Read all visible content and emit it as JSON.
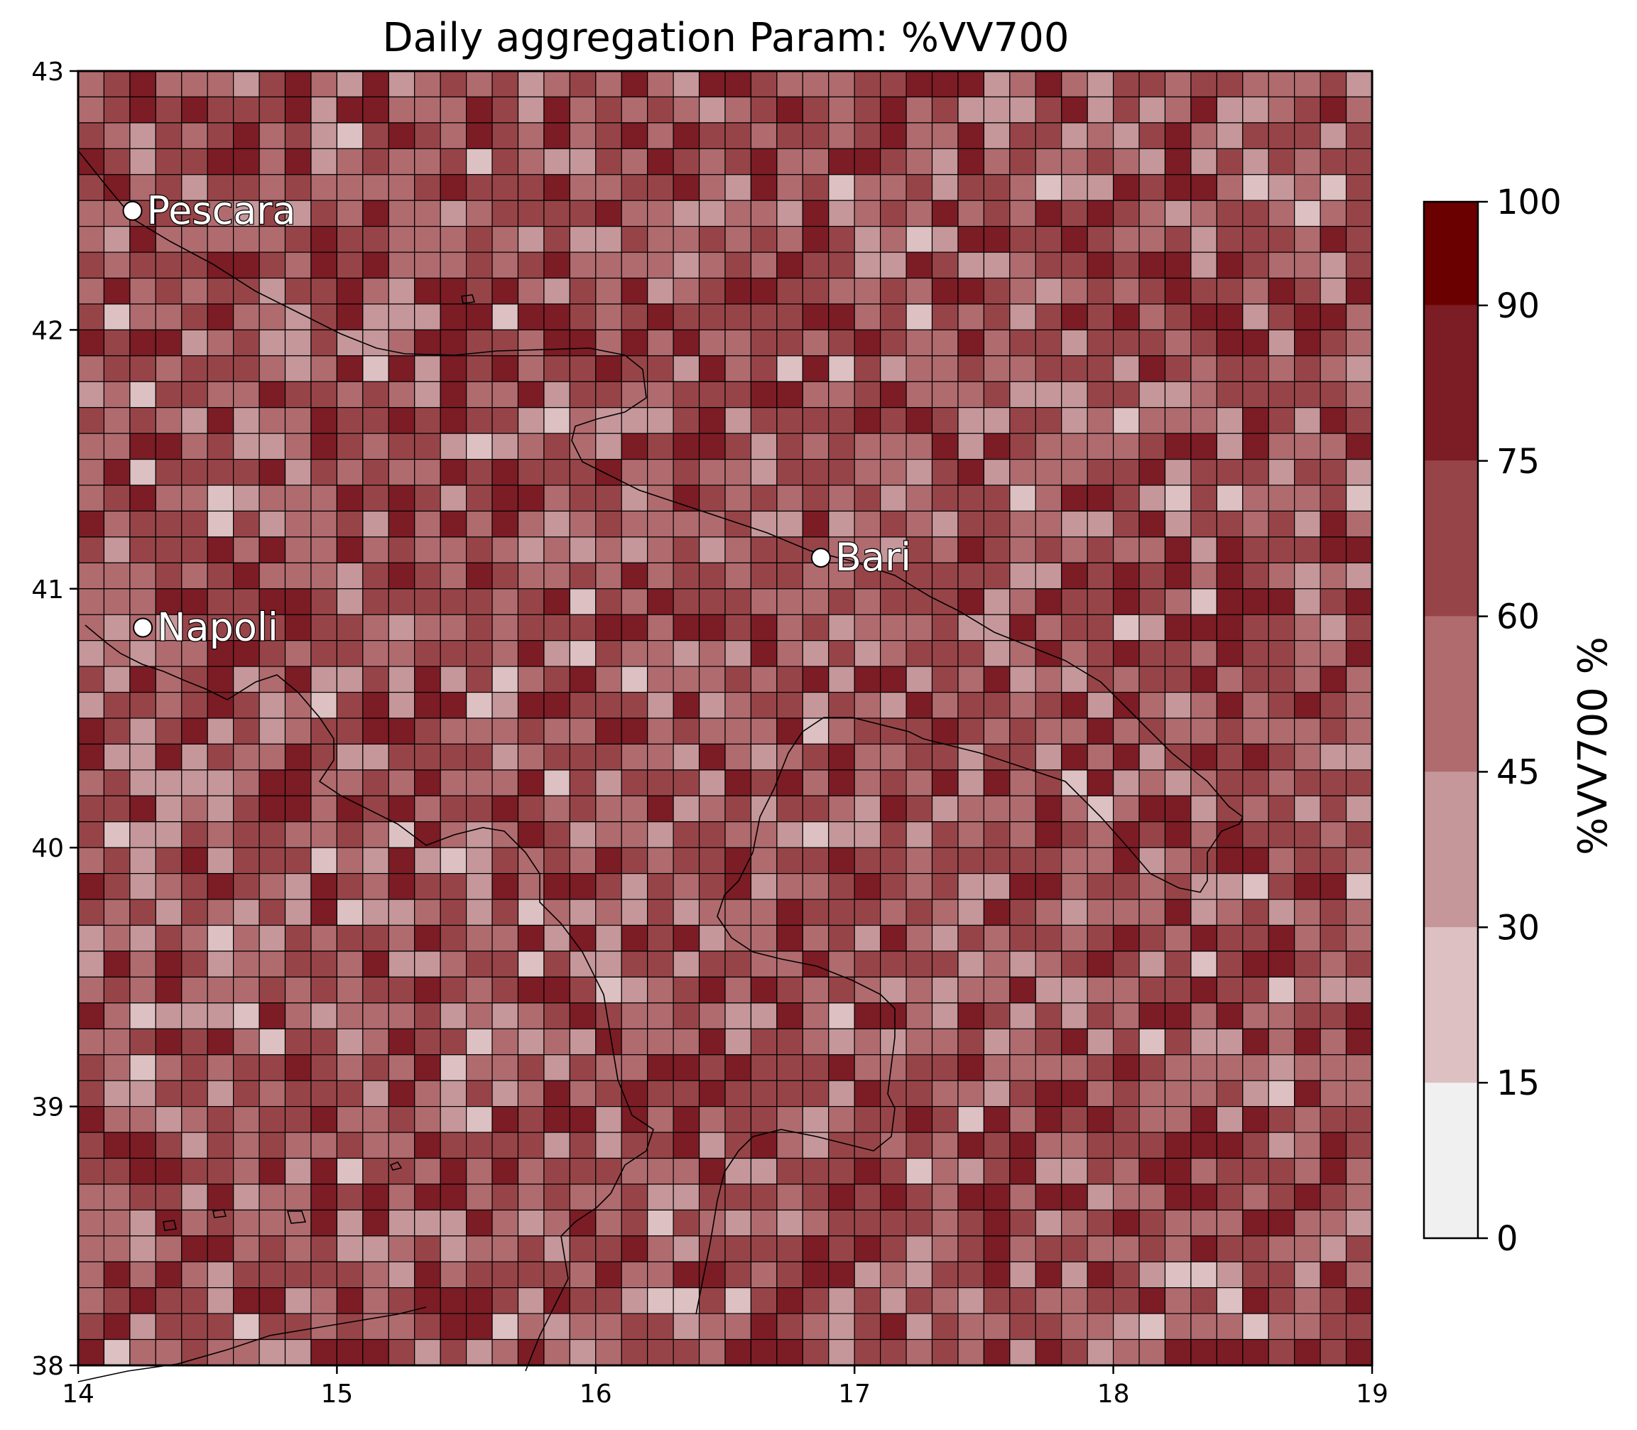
{
  "title": "Daily aggregation Param: %VV700",
  "colorbar": {
    "label": "%VV700 %",
    "levels": [
      0,
      15,
      30,
      45,
      60,
      75,
      90,
      100
    ],
    "tick_labels": [
      "0",
      "15",
      "30",
      "45",
      "60",
      "75",
      "90",
      "100"
    ],
    "colors": [
      "#f0f0f0",
      "#dcc0c2",
      "#c5979a",
      "#b06b6f",
      "#974448",
      "#7c1c25",
      "#6b0000"
    ]
  },
  "chart_data": {
    "type": "heatmap",
    "title": "Daily aggregation Param: %VV700",
    "x_ticks": [
      "14",
      "15",
      "16",
      "17",
      "18",
      "19"
    ],
    "y_ticks": [
      "38",
      "39",
      "40",
      "41",
      "42",
      "43"
    ],
    "xlim": [
      14,
      19
    ],
    "ylim": [
      38,
      43
    ],
    "grid_columns": 50,
    "grid_rows": 50,
    "value_range": [
      0,
      100
    ],
    "note_colors": "cells colored by value bins 0-15-30-45-60-75-90-100",
    "cities": [
      {
        "name": "Pescara",
        "lon": 14.21,
        "lat": 42.46
      },
      {
        "name": "Napoli",
        "lon": 14.25,
        "lat": 40.85
      },
      {
        "name": "Bari",
        "lon": 16.87,
        "lat": 41.12
      }
    ]
  }
}
